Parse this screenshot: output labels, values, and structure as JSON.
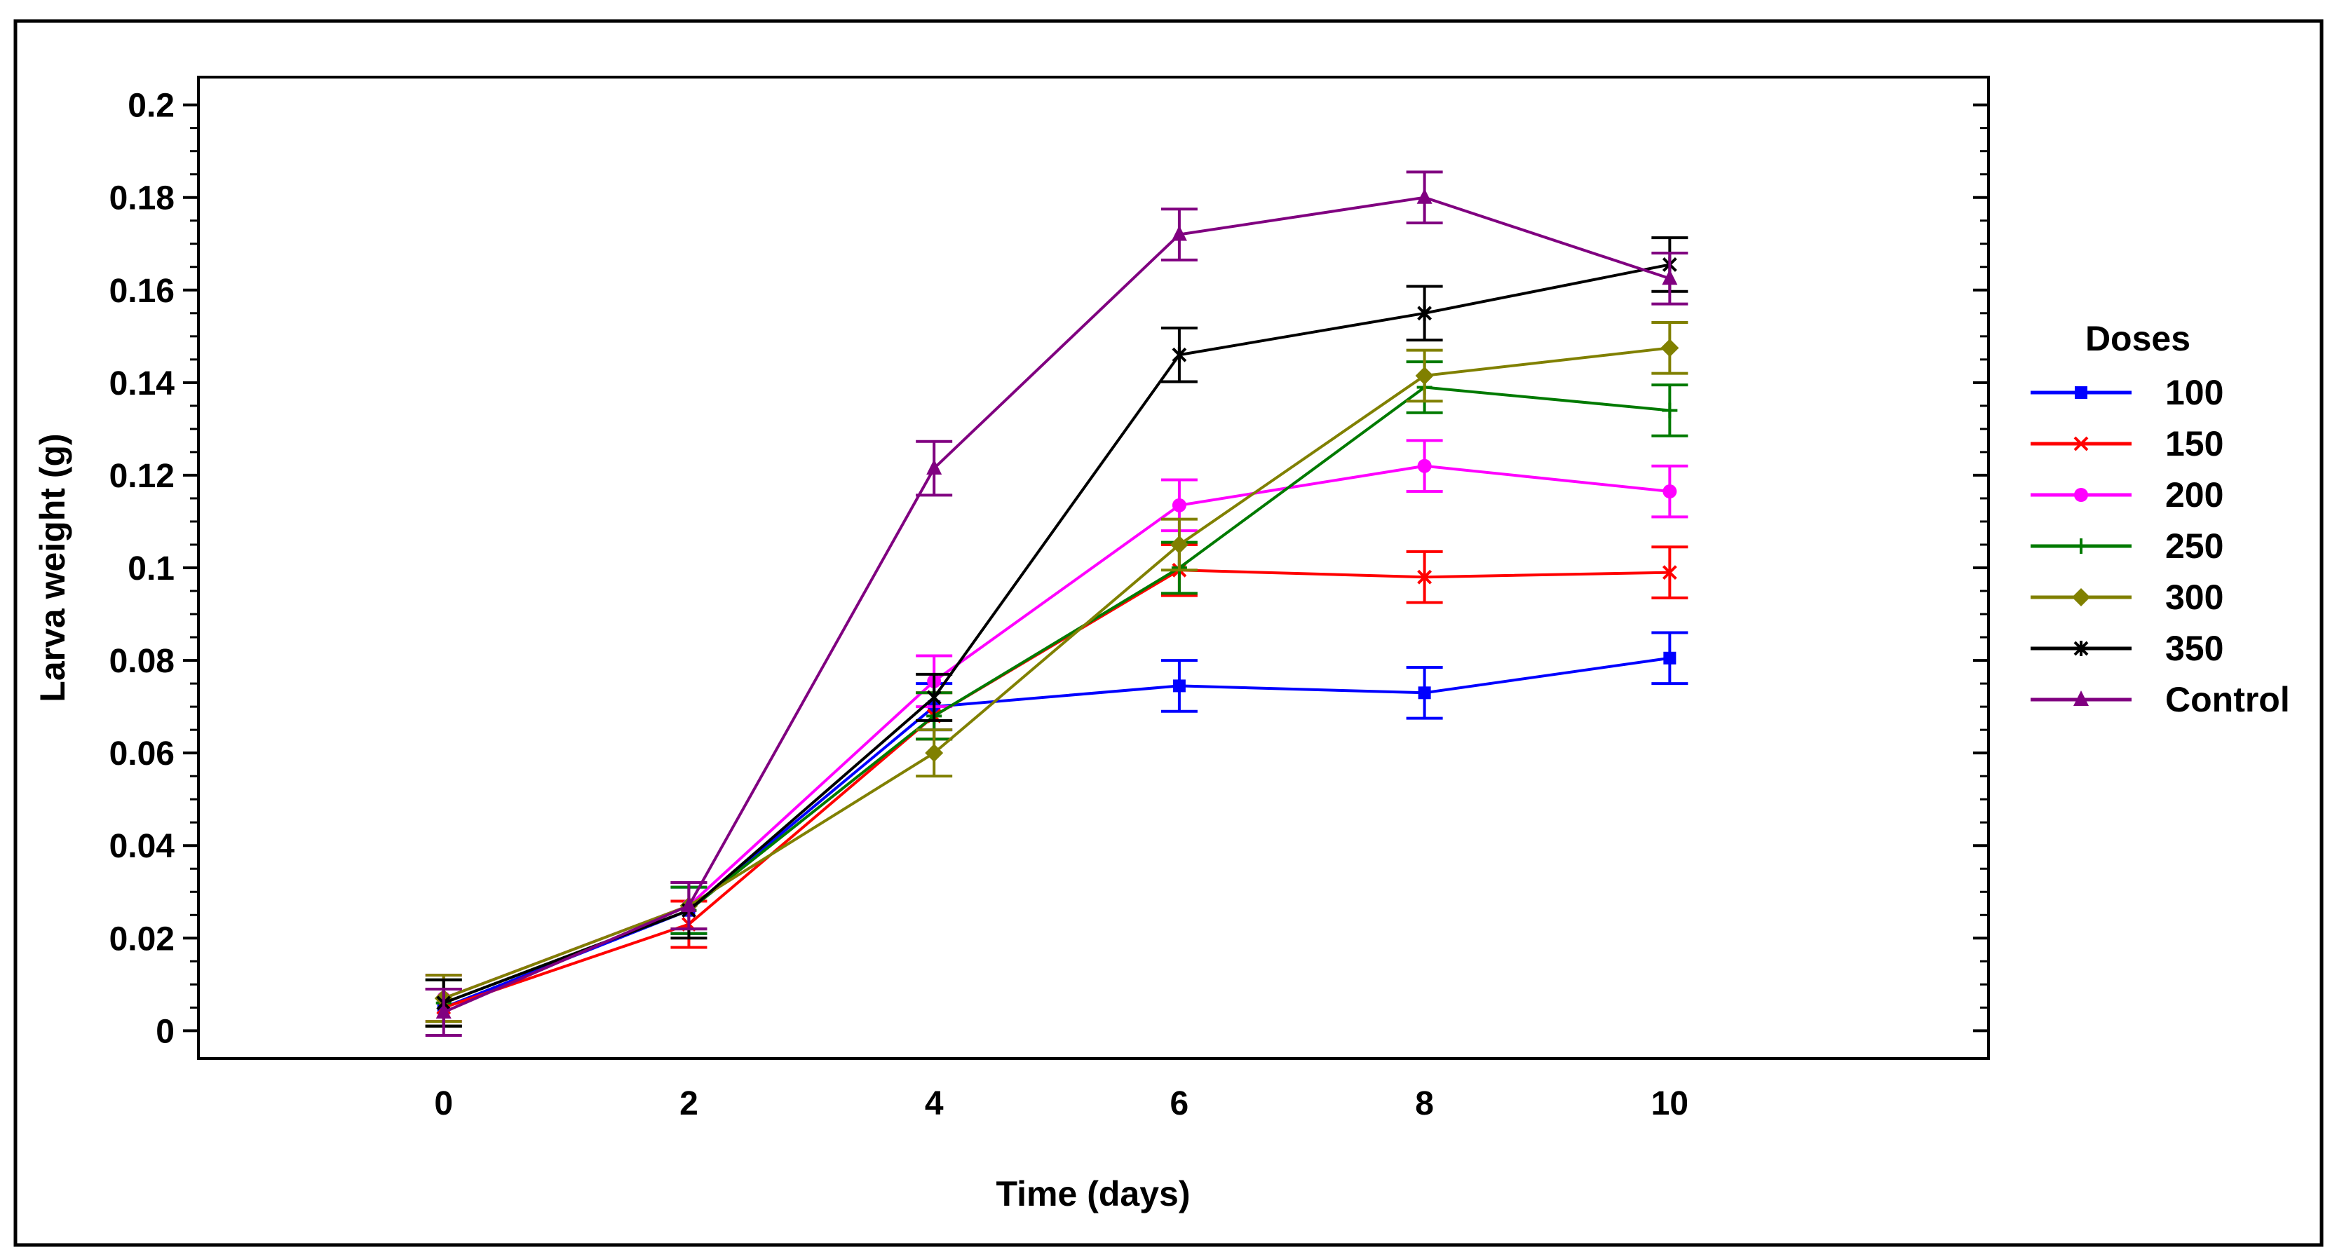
{
  "chart_data": {
    "type": "line",
    "title": "",
    "xlabel": "Time (days)",
    "ylabel": "Larva weight (g)",
    "x": [
      0,
      2,
      4,
      6,
      8,
      10
    ],
    "x_tick_labels": [
      "0",
      "2",
      "4",
      "6",
      "8",
      "10"
    ],
    "xlim": [
      -2,
      12.6
    ],
    "ylim": [
      -0.006,
      0.206
    ],
    "y_ticks": [
      0,
      0.02,
      0.04,
      0.06,
      0.08,
      0.1,
      0.12,
      0.14,
      0.16,
      0.18,
      0.2
    ],
    "y_tick_labels": [
      "0",
      "0.02",
      "0.04",
      "0.06",
      "0.08",
      "0.1",
      "0.12",
      "0.14",
      "0.16",
      "0.18",
      "0.2"
    ],
    "grid": false,
    "error_bars": true,
    "legend": {
      "title": "Doses",
      "position": "right"
    },
    "series": [
      {
        "name": "100",
        "color": "#0000ff",
        "marker": "square",
        "values": [
          0.005,
          0.026,
          0.07,
          0.0745,
          0.073,
          0.0805
        ],
        "errors": [
          0.004,
          0.005,
          0.005,
          0.0055,
          0.0055,
          0.0055
        ]
      },
      {
        "name": "150",
        "color": "#ff0000",
        "marker": "x",
        "values": [
          0.005,
          0.023,
          0.068,
          0.0995,
          0.098,
          0.099
        ],
        "errors": [
          0.004,
          0.005,
          0.005,
          0.0055,
          0.0055,
          0.0055
        ]
      },
      {
        "name": "200",
        "color": "#ff00ff",
        "marker": "circle",
        "values": [
          0.007,
          0.027,
          0.0755,
          0.1135,
          0.122,
          0.1165
        ],
        "errors": [
          0.005,
          0.005,
          0.0055,
          0.0055,
          0.0055,
          0.0055
        ]
      },
      {
        "name": "250",
        "color": "#007a00",
        "marker": "plus",
        "values": [
          0.006,
          0.026,
          0.068,
          0.1,
          0.139,
          0.134
        ],
        "errors": [
          0.005,
          0.005,
          0.005,
          0.0055,
          0.0055,
          0.0055
        ]
      },
      {
        "name": "300",
        "color": "#808000",
        "marker": "diamond",
        "values": [
          0.007,
          0.027,
          0.06,
          0.105,
          0.1415,
          0.1475
        ],
        "errors": [
          0.005,
          0.005,
          0.005,
          0.0055,
          0.0055,
          0.0055
        ]
      },
      {
        "name": "350",
        "color": "#000000",
        "marker": "asterisk",
        "values": [
          0.006,
          0.026,
          0.072,
          0.146,
          0.155,
          0.1655
        ],
        "errors": [
          0.005,
          0.006,
          0.005,
          0.0058,
          0.0058,
          0.0058
        ]
      },
      {
        "name": "Control",
        "color": "#800080",
        "marker": "triangle",
        "values": [
          0.004,
          0.027,
          0.1215,
          0.172,
          0.18,
          0.1625
        ],
        "errors": [
          0.005,
          0.005,
          0.0058,
          0.0055,
          0.0055,
          0.0055
        ]
      }
    ]
  }
}
